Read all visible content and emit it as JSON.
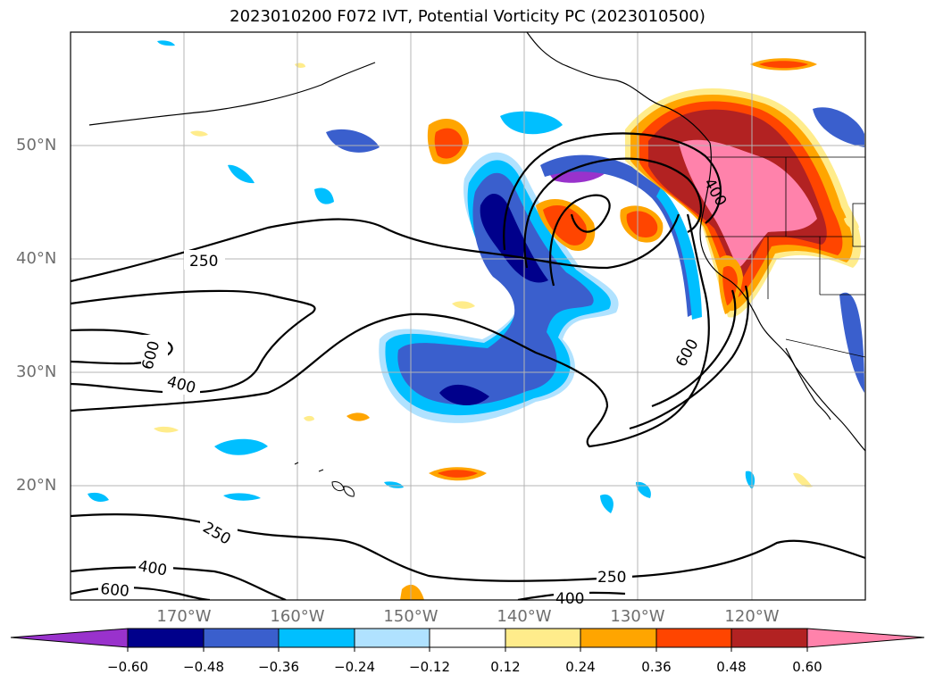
{
  "title": "2023010200 F072 IVT, Potential Vorticity PC (2023010500)",
  "lat_labels": [
    "50°N",
    "40°N",
    "30°N",
    "20°N"
  ],
  "lon_labels": [
    "170°W",
    "160°W",
    "150°W",
    "140°W",
    "130°W",
    "120°W"
  ],
  "colorbar": {
    "ticks": [
      "−0.60",
      "−0.48",
      "−0.36",
      "−0.24",
      "−0.12",
      "0.12",
      "0.24",
      "0.36",
      "0.48",
      "0.60"
    ],
    "colors": [
      "#9932CC",
      "#00008B",
      "#3A5FCD",
      "#00BFFF",
      "#B0E2FF",
      "#FFFFFF",
      "#FFEC8B",
      "#FFA500",
      "#FF4500",
      "#B22222",
      "#FF82AB"
    ]
  },
  "contour_labels": [
    "250",
    "600",
    "400",
    "250",
    "400",
    "600",
    "250",
    "400",
    "600",
    "400"
  ],
  "colors": {
    "grid": "#b4b4b4",
    "coast": "#000000",
    "ivt_contour": "#000000"
  }
}
